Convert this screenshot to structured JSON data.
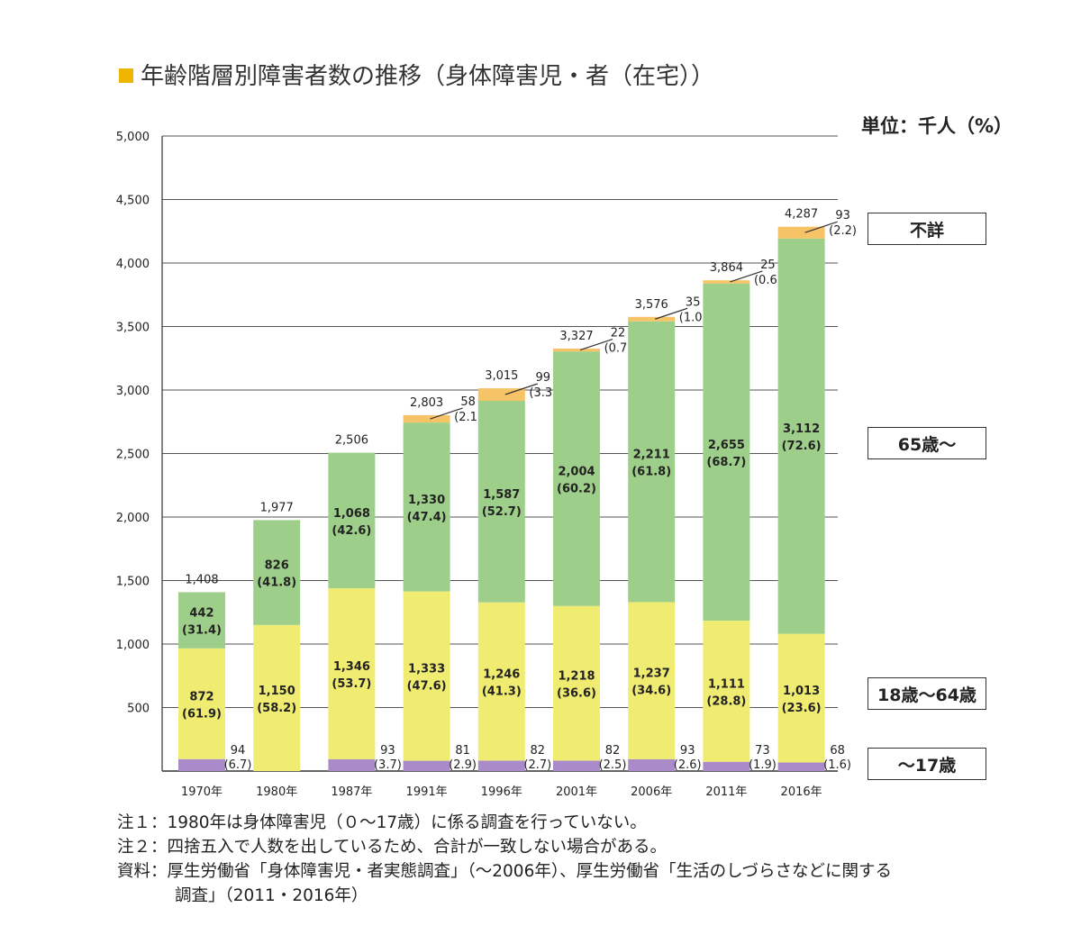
{
  "title": "年齢階層別障害者数の推移（身体障害児・者（在宅））",
  "unit": "単位：千人（%）",
  "colors": {
    "under17": "#a98bc9",
    "age18_64": "#f0ec72",
    "age65": "#9ecf8a",
    "unknown": "#f6c366",
    "title_mark": "#f0b400"
  },
  "legend": {
    "unknown": "不詳",
    "age65": "65歳～",
    "age18_64": "18歳～64歳",
    "under17": "～17歳"
  },
  "notes": [
    "注１：1980年は身体障害児（０～17歳）に係る調査を行っていない。",
    "注２：四捨五入で人数を出しているため、合計が一致しない場合がある。",
    "資料：厚生労働省「身体障害児・者実態調査」（～2006年）、厚生労働省「生活のしづらさなどに関する",
    "調査」（2011・2016年）"
  ],
  "chart_data": {
    "type": "bar",
    "stacked": true,
    "title": "年齢階層別障害者数の推移（身体障害児・者（在宅））",
    "ylabel": "単位：千人（%）",
    "ylim": [
      0,
      5000
    ],
    "yticks": [
      "0",
      "500",
      "1,000",
      "1,500",
      "2,000",
      "2,500",
      "3,000",
      "3,500",
      "4,000",
      "4,500",
      "5,000"
    ],
    "categories": [
      "1970年",
      "1980年",
      "1987年",
      "1991年",
      "1996年",
      "2001年",
      "2006年",
      "2011年",
      "2016年"
    ],
    "totals": [
      "1,408",
      "1,977",
      "2,506",
      "2,803",
      "3,015",
      "3,327",
      "3,576",
      "3,864",
      "4,287"
    ],
    "series": [
      {
        "name": "～17歳",
        "key": "under17",
        "values": [
          94,
          0,
          93,
          81,
          82,
          82,
          93,
          73,
          68
        ],
        "labels": [
          "94",
          "",
          "93",
          "81",
          "82",
          "82",
          "93",
          "73",
          "68"
        ],
        "pcts": [
          "(6.7)",
          "",
          "(3.7)",
          "(2.9)",
          "(2.7)",
          "(2.5)",
          "(2.6)",
          "(1.9)",
          "(1.6)"
        ]
      },
      {
        "name": "18歳～64歳",
        "key": "age18_64",
        "values": [
          872,
          1150,
          1346,
          1333,
          1246,
          1218,
          1237,
          1111,
          1013
        ],
        "labels": [
          "872",
          "1,150",
          "1,346",
          "1,333",
          "1,246",
          "1,218",
          "1,237",
          "1,111",
          "1,013"
        ],
        "pcts": [
          "(61.9)",
          "(58.2)",
          "(53.7)",
          "(47.6)",
          "(41.3)",
          "(36.6)",
          "(34.6)",
          "(28.8)",
          "(23.6)"
        ]
      },
      {
        "name": "65歳～",
        "key": "age65",
        "values": [
          442,
          826,
          1068,
          1330,
          1587,
          2004,
          2211,
          2655,
          3112
        ],
        "labels": [
          "442",
          "826",
          "1,068",
          "1,330",
          "1,587",
          "2,004",
          "2,211",
          "2,655",
          "3,112"
        ],
        "pcts": [
          "(31.4)",
          "(41.8)",
          "(42.6)",
          "(47.4)",
          "(52.7)",
          "(60.2)",
          "(61.8)",
          "(68.7)",
          "(72.6)"
        ]
      },
      {
        "name": "不詳",
        "key": "unknown",
        "values": [
          0,
          0,
          0,
          58,
          99,
          22,
          35,
          25,
          93
        ],
        "labels": [
          "",
          "",
          "",
          "58",
          "99",
          "22",
          "35",
          "25",
          "93"
        ],
        "pcts": [
          "",
          "",
          "",
          "(2.1)",
          "(3.3)",
          "(0.7)",
          "(1.0)",
          "(0.6)",
          "(2.2)"
        ]
      }
    ]
  }
}
